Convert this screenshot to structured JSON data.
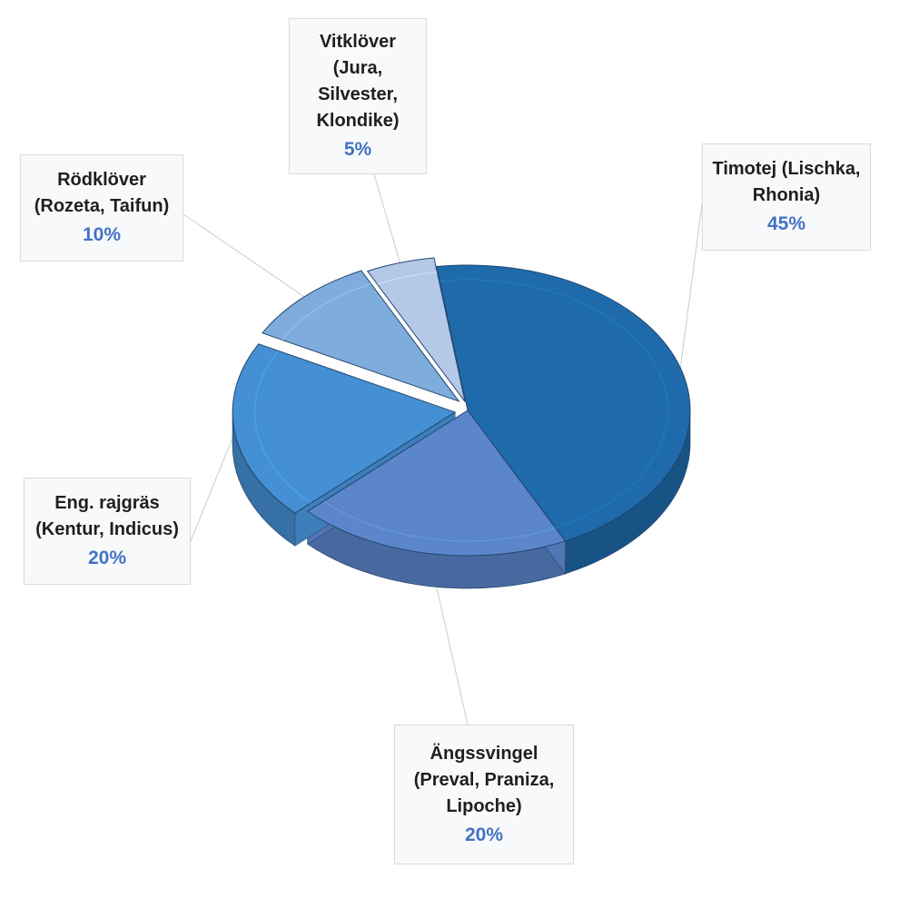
{
  "chart_data": {
    "type": "pie",
    "title": "",
    "legend": "none",
    "slices": [
      {
        "label": "Timotej (Lischka, Rhonia)",
        "value": 45,
        "value_label": "45%",
        "color": "#1f6aab",
        "label_lines": [
          "Timotej (Lischka,",
          "Rhonia)"
        ]
      },
      {
        "label": "Ängssvingel (Preval, Praniza, Lipoche)",
        "value": 20,
        "value_label": "20%",
        "color": "#5b86cc",
        "label_lines": [
          "Ängssvingel",
          "(Preval, Praniza,",
          "Lipoche)"
        ]
      },
      {
        "label": "Eng. rajgräs (Kentur, Indicus)",
        "value": 20,
        "value_label": "20%",
        "color": "#4590d4",
        "label_lines": [
          "Eng. rajgräs",
          "(Kentur, Indicus)"
        ]
      },
      {
        "label": "Rödklöver (Rozeta, Taifun)",
        "value": 10,
        "value_label": "10%",
        "color": "#7eacdc",
        "label_lines": [
          "Rödklöver",
          "(Rozeta, Taifun)"
        ]
      },
      {
        "label": "Vitklöver (Jura, Silvester, Klondike)",
        "value": 5,
        "value_label": "5%",
        "color": "#b4c8e8",
        "label_lines": [
          "Vitklöver",
          "(Jura,",
          "Silvester,",
          "Klondike)"
        ]
      }
    ]
  }
}
